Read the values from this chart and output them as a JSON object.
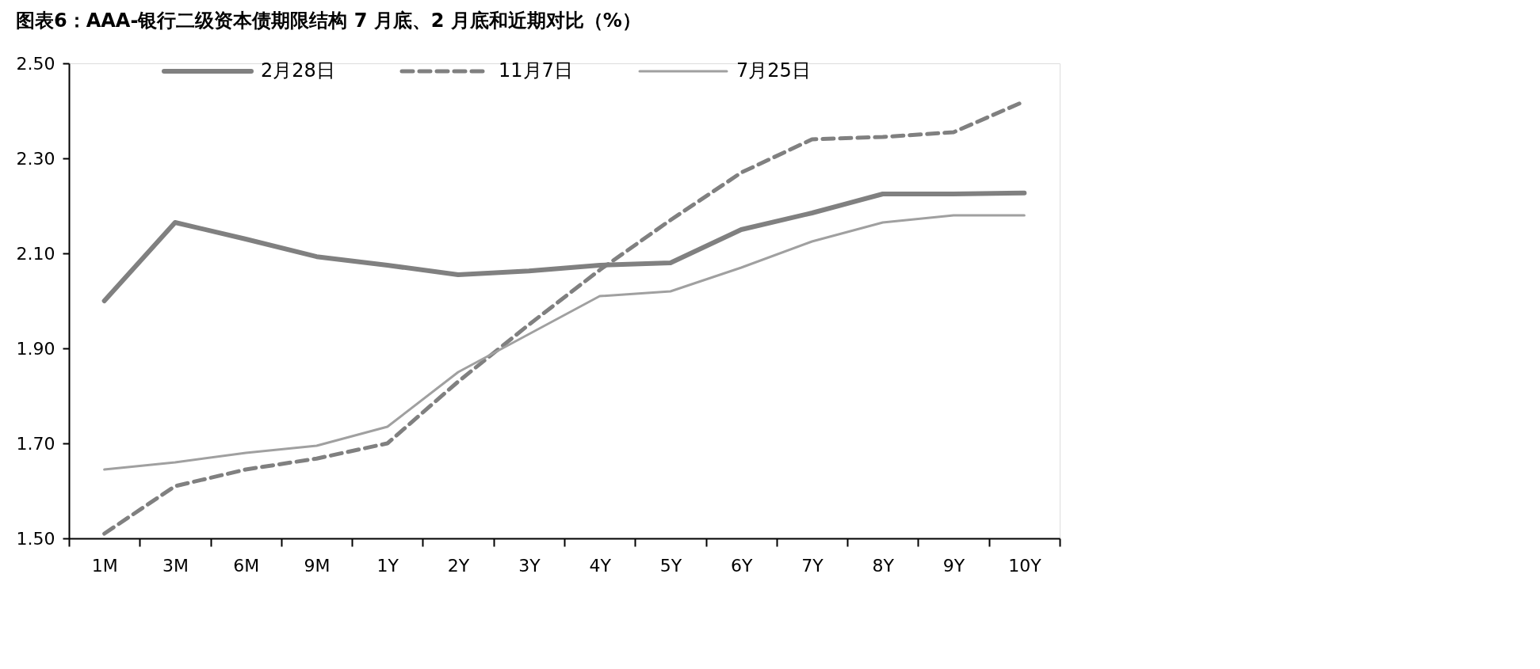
{
  "chart_data": {
    "type": "line",
    "title": "图表6：AAA-银行二级资本债期限结构 7 月底、2 月底和近期对比（%）",
    "categories": [
      "1M",
      "3M",
      "6M",
      "9M",
      "1Y",
      "2Y",
      "3Y",
      "4Y",
      "5Y",
      "6Y",
      "7Y",
      "8Y",
      "9Y",
      "10Y"
    ],
    "series": [
      {
        "name": "2月28日",
        "color": "#808080",
        "line_style": "solid",
        "values": [
          2.0,
          2.165,
          2.13,
          2.093,
          2.075,
          2.055,
          2.063,
          2.075,
          2.08,
          2.15,
          2.185,
          2.225,
          2.225,
          2.227
        ]
      },
      {
        "name": "11月7日",
        "color": "#808080",
        "line_style": "dashed",
        "values": [
          1.51,
          1.61,
          1.645,
          1.668,
          1.7,
          1.83,
          1.95,
          2.065,
          2.17,
          2.27,
          2.34,
          2.345,
          2.355,
          2.42
        ]
      },
      {
        "name": "7月25日",
        "color": "#a0a0a0",
        "line_style": "solid",
        "values": [
          1.645,
          1.66,
          1.68,
          1.695,
          1.735,
          1.85,
          1.93,
          2.01,
          2.02,
          2.07,
          2.125,
          2.165,
          2.18,
          2.18
        ]
      }
    ],
    "ylim": [
      1.5,
      2.5
    ],
    "yticks": [
      {
        "value": 1.5,
        "label": "1.50"
      },
      {
        "value": 1.7,
        "label": "1.70"
      },
      {
        "value": 1.9,
        "label": "1.90"
      },
      {
        "value": 2.1,
        "label": "2.10"
      },
      {
        "value": 2.3,
        "label": "2.30"
      },
      {
        "value": 2.5,
        "label": "2.50"
      }
    ],
    "legend": "top",
    "grid": false
  }
}
